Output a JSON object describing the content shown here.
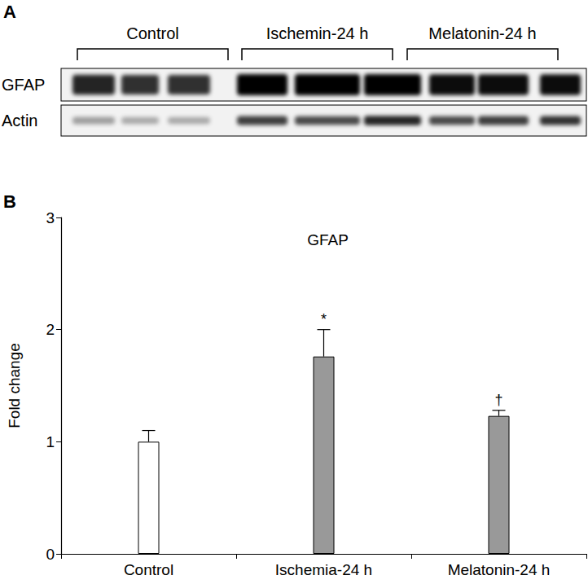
{
  "panel_labels": [
    "A",
    "B"
  ],
  "blot": {
    "groups": [
      "Control",
      "Ischemin-24 h",
      "Melatonin-24 h"
    ],
    "rows": [
      {
        "label": "GFAP",
        "intensity": [
          0.85,
          0.8,
          0.8,
          1.0,
          1.0,
          1.0,
          0.95,
          0.95,
          0.95
        ]
      },
      {
        "label": "Actin",
        "intensity": [
          0.35,
          0.3,
          0.3,
          0.75,
          0.7,
          0.85,
          0.7,
          0.75,
          0.8
        ]
      }
    ]
  },
  "chart_data": {
    "type": "bar",
    "title": "GFAP",
    "y_label": "Fold change",
    "categories": [
      "Control",
      "Ischemia-24 h",
      "Melatonin-24 h"
    ],
    "values": [
      1.0,
      1.76,
      1.23
    ],
    "error": [
      0.1,
      0.24,
      0.05
    ],
    "colors": [
      "#ffffff",
      "#999999",
      "#999999"
    ],
    "annotations": [
      null,
      "*",
      "†"
    ],
    "ylim": [
      0,
      3
    ],
    "yticks": [
      0,
      1,
      2,
      3
    ],
    "grid": false
  }
}
